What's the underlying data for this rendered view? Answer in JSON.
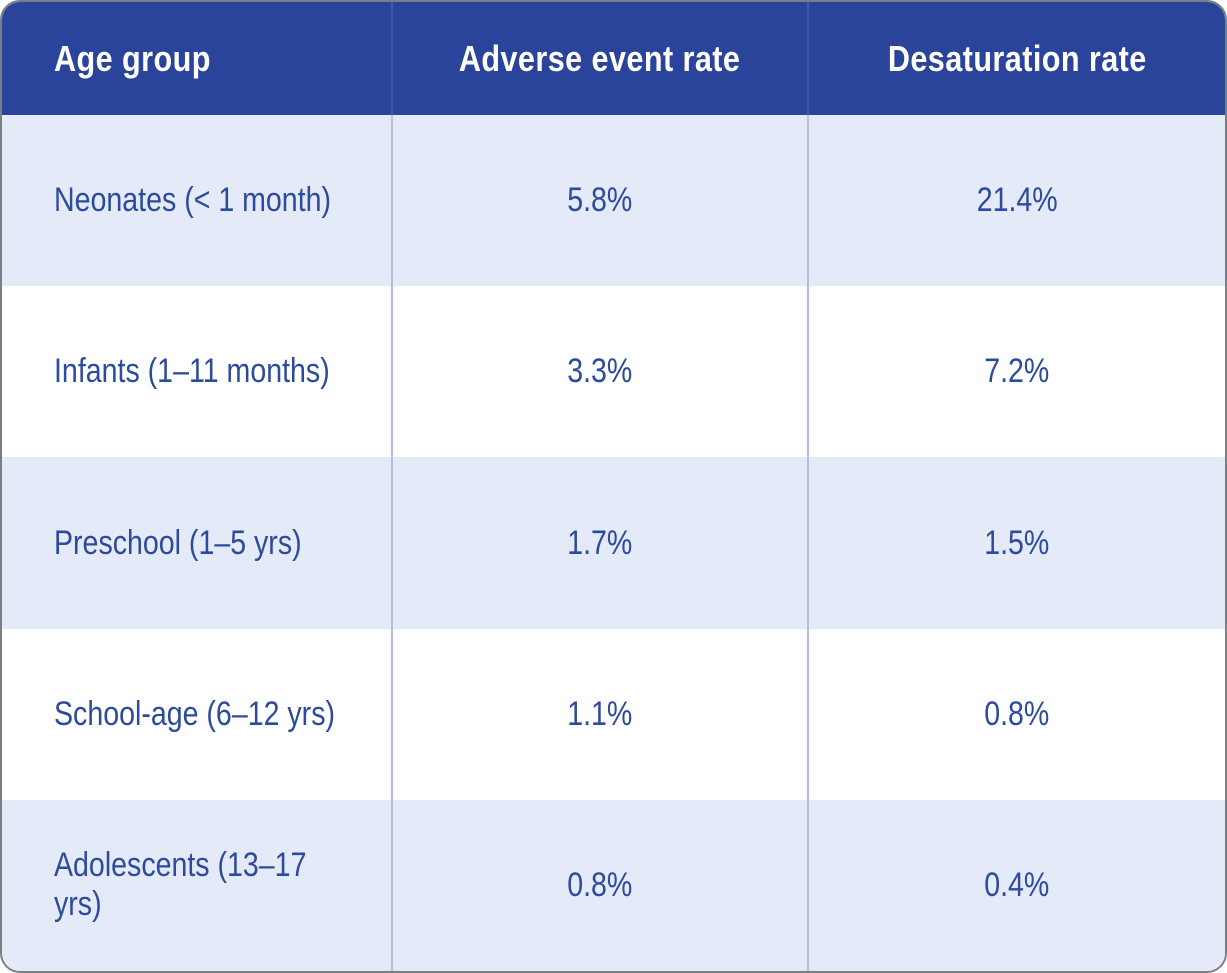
{
  "theme": {
    "header_bg": "#2a449b",
    "header_text": "#ffffff",
    "row_alt_bg": "#e4eaf7",
    "row_bg": "#ffffff",
    "cell_text": "#2c4a9e",
    "divider": "#b1bedf",
    "border": "#7a7f86"
  },
  "table": {
    "columns": [
      {
        "label": "Age group"
      },
      {
        "label": "Adverse event rate"
      },
      {
        "label": "Desaturation rate"
      }
    ],
    "rows": [
      {
        "age_group": "Neonates (< 1 month)",
        "adverse_event_rate": "5.8%",
        "desaturation_rate": "21.4%"
      },
      {
        "age_group": "Infants (1–11 months)",
        "adverse_event_rate": "3.3%",
        "desaturation_rate": "7.2%"
      },
      {
        "age_group": "Preschool (1–5 yrs)",
        "adverse_event_rate": "1.7%",
        "desaturation_rate": "1.5%"
      },
      {
        "age_group": "School-age (6–12 yrs)",
        "adverse_event_rate": "1.1%",
        "desaturation_rate": "0.8%"
      },
      {
        "age_group": "Adolescents (13–17 yrs)",
        "adverse_event_rate": "0.8%",
        "desaturation_rate": "0.4%"
      }
    ]
  },
  "chart_data": {
    "type": "table",
    "title": "",
    "columns": [
      "Age group",
      "Adverse event rate",
      "Desaturation rate"
    ],
    "rows": [
      [
        "Neonates (< 1 month)",
        "5.8%",
        "21.4%"
      ],
      [
        "Infants (1–11 months)",
        "3.3%",
        "7.2%"
      ],
      [
        "Preschool (1–5 yrs)",
        "1.7%",
        "1.5%"
      ],
      [
        "School-age (6–12 yrs)",
        "1.1%",
        "0.8%"
      ],
      [
        "Adolescents (13–17 yrs)",
        "0.8%",
        "0.4%"
      ]
    ],
    "adverse_event_rate_pct": [
      5.8,
      3.3,
      1.7,
      1.1,
      0.8
    ],
    "desaturation_rate_pct": [
      21.4,
      7.2,
      1.5,
      0.8,
      0.4
    ]
  }
}
